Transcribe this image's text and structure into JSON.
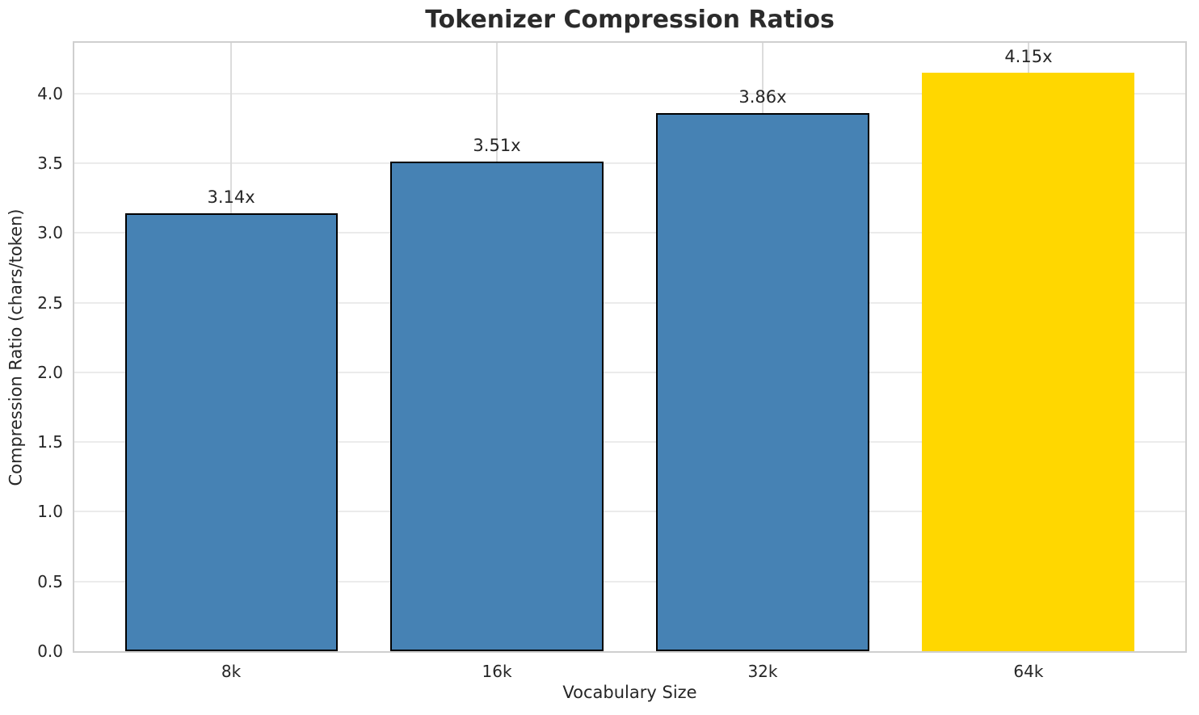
{
  "figure": {
    "background": "#ffffff"
  },
  "chart_data": {
    "type": "bar",
    "title": "Tokenizer Compression Ratios",
    "xlabel": "Vocabulary Size",
    "ylabel": "Compression Ratio (chars/token)",
    "categories": [
      "8k",
      "16k",
      "32k",
      "64k"
    ],
    "values": [
      3.14,
      3.51,
      3.86,
      4.15
    ],
    "bar_labels": [
      "3.14x",
      "3.51x",
      "3.86x",
      "4.15x"
    ],
    "bar_colors": [
      "#4682B4",
      "#4682B4",
      "#4682B4",
      "#FFD700"
    ],
    "bar_edge_colors": [
      "#000000",
      "#000000",
      "#000000",
      "none"
    ],
    "highlight_index": 3,
    "highlight_color": "#FFD700",
    "base_color": "#4682B4",
    "ylim": [
      0,
      4.365
    ],
    "yticks": [
      0.0,
      0.5,
      1.0,
      1.5,
      2.0,
      2.5,
      3.0,
      3.5,
      4.0
    ],
    "ytick_labels": [
      "0.0",
      "0.5",
      "1.0",
      "1.5",
      "2.0",
      "2.5",
      "3.0",
      "3.5",
      "4.0"
    ],
    "grid": "both",
    "legend": "none"
  }
}
